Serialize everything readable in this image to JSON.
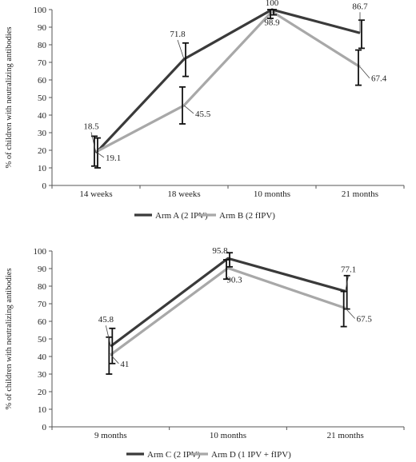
{
  "chart_data": [
    {
      "type": "line",
      "ylabel": "% of children with neutralizing antibodies",
      "ylim": [
        0,
        100
      ],
      "yticks": [
        0,
        10,
        20,
        30,
        40,
        50,
        60,
        70,
        80,
        90,
        100
      ],
      "categories": [
        "14 weeks",
        "18 weeks",
        "10 months",
        "21 months"
      ],
      "legend_position": "bottom",
      "series": [
        {
          "name": "Arm A (2 IPV)",
          "color": "#3a3a3a",
          "values": [
            18.5,
            71.8,
            100,
            86.7
          ],
          "labels": [
            "18.5",
            "71.8",
            "100",
            "86.7"
          ],
          "err_low": [
            10,
            62,
            97,
            78
          ],
          "err_high": [
            27,
            81,
            100,
            94
          ]
        },
        {
          "name": "Arm B (2 fIPV)",
          "color": "#a8a8a8",
          "values": [
            19.1,
            45.5,
            98.9,
            67.4
          ],
          "labels": [
            "19.1",
            "45.5",
            "98.9",
            "67.4"
          ],
          "err_low": [
            11,
            35,
            95,
            57
          ],
          "err_high": [
            28,
            56,
            100,
            77
          ]
        }
      ]
    },
    {
      "type": "line",
      "ylabel": "% of children with neutralizing antibodies",
      "ylim": [
        0,
        100
      ],
      "yticks": [
        0,
        10,
        20,
        30,
        40,
        50,
        60,
        70,
        80,
        90,
        100
      ],
      "categories": [
        "9 months",
        "10 months",
        "21 months"
      ],
      "legend_position": "bottom",
      "series": [
        {
          "name": "Arm C (2 IPV)",
          "color": "#3a3a3a",
          "values": [
            45.8,
            95.8,
            77.1
          ],
          "labels": [
            "45.8",
            "95.8",
            "77.1"
          ],
          "err_low": [
            36,
            91,
            67
          ],
          "err_high": [
            56,
            99,
            86
          ]
        },
        {
          "name": "Arm D (1 IPV + fIPV)",
          "color": "#a8a8a8",
          "values": [
            41,
            90.3,
            67.5
          ],
          "labels": [
            "41",
            "90.3",
            "67.5"
          ],
          "err_low": [
            30,
            84,
            57
          ],
          "err_high": [
            51,
            95,
            77
          ]
        }
      ]
    }
  ]
}
